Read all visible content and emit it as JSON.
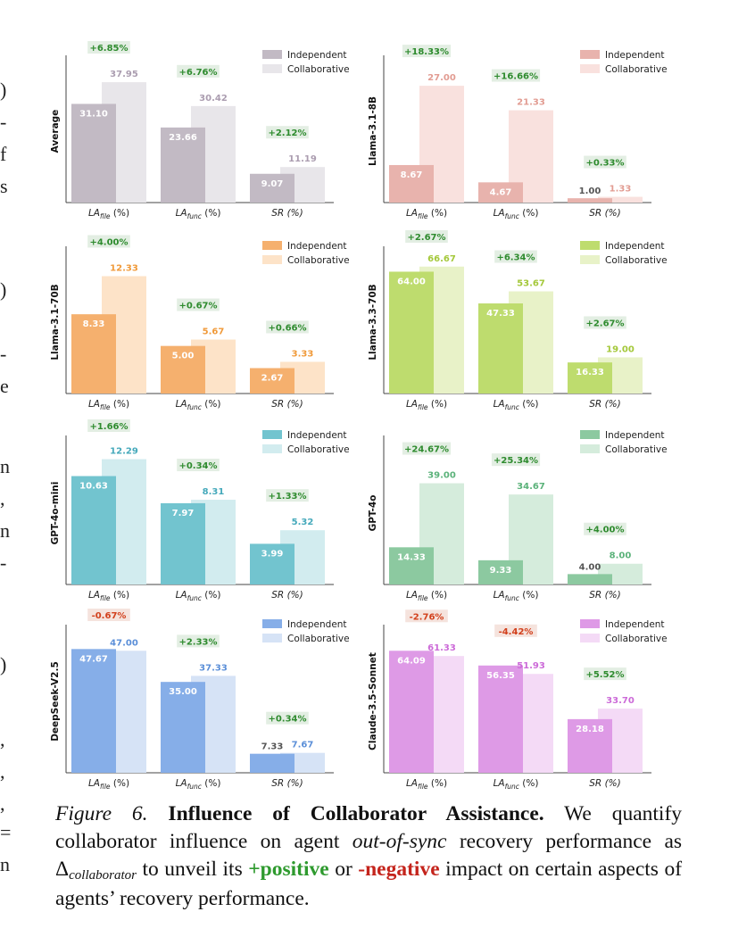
{
  "edge_glyphs": [
    ")",
    "-",
    "f",
    "s",
    ")",
    "-",
    "e",
    "n",
    ",",
    "n",
    "-",
    ")",
    ",",
    ",",
    ",",
    "=",
    "n"
  ],
  "chart_data": [
    {
      "type": "bar",
      "model": "Average",
      "categories": [
        "LA_file (%)",
        "LA_func (%)",
        "SR (%)"
      ],
      "series": [
        {
          "name": "Independent",
          "values": [
            31.1,
            23.66,
            9.07
          ]
        },
        {
          "name": "Collaborative",
          "values": [
            37.95,
            30.42,
            11.19
          ]
        }
      ],
      "value_labels": {
        "independent": [
          "31.10",
          "23.66",
          "9.07"
        ],
        "collaborative": [
          "37.95",
          "30.42",
          "11.19"
        ]
      },
      "deltas": [
        "+6.85%",
        "+6.76%",
        "+2.12%"
      ],
      "colors": {
        "independent": "#c2bac4",
        "collaborative": "#e8e6ea",
        "label": "#ab9db0"
      },
      "ylim": [
        0,
        45
      ]
    },
    {
      "type": "bar",
      "model": "Llama-3.1-8B",
      "categories": [
        "LA_file (%)",
        "LA_func (%)",
        "SR (%)"
      ],
      "series": [
        {
          "name": "Independent",
          "values": [
            8.67,
            4.67,
            1.0
          ]
        },
        {
          "name": "Collaborative",
          "values": [
            27.0,
            21.33,
            1.33
          ]
        }
      ],
      "value_labels": {
        "independent": [
          "8.67",
          "4.67",
          "1.00"
        ],
        "collaborative": [
          "27.00",
          "21.33",
          "1.33"
        ]
      },
      "deltas": [
        "+18.33%",
        "+16.66%",
        "+0.33%"
      ],
      "colors": {
        "independent": "#e8b3ad",
        "collaborative": "#f9e1de",
        "label": "#e29c92"
      },
      "ylim": [
        0,
        33
      ]
    },
    {
      "type": "bar",
      "model": "Llama-3.1-70B",
      "categories": [
        "LA_file (%)",
        "LA_func (%)",
        "SR (%)"
      ],
      "series": [
        {
          "name": "Independent",
          "values": [
            8.33,
            5.0,
            2.67
          ]
        },
        {
          "name": "Collaborative",
          "values": [
            12.33,
            5.67,
            3.33
          ]
        }
      ],
      "value_labels": {
        "independent": [
          "8.33",
          "5.00",
          "2.67"
        ],
        "collaborative": [
          "12.33",
          "5.67",
          "3.33"
        ]
      },
      "deltas": [
        "+4.00%",
        "+0.67%",
        "+0.66%"
      ],
      "colors": {
        "independent": "#f5b06e",
        "collaborative": "#fde3c8",
        "label": "#f09a3a"
      },
      "ylim": [
        0,
        15
      ]
    },
    {
      "type": "bar",
      "model": "Llama-3.3-70B",
      "categories": [
        "LA_file (%)",
        "LA_func (%)",
        "SR (%)"
      ],
      "series": [
        {
          "name": "Independent",
          "values": [
            64.0,
            47.33,
            16.33
          ]
        },
        {
          "name": "Collaborative",
          "values": [
            66.67,
            53.67,
            19.0
          ]
        }
      ],
      "value_labels": {
        "independent": [
          "64.00",
          "47.33",
          "16.33"
        ],
        "collaborative": [
          "66.67",
          "53.67",
          "19.00"
        ]
      },
      "deltas": [
        "+2.67%",
        "+6.34%",
        "+2.67%"
      ],
      "colors": {
        "independent": "#bedc6e",
        "collaborative": "#e8f2c8",
        "label": "#a4c83a"
      },
      "ylim": [
        0,
        75
      ]
    },
    {
      "type": "bar",
      "model": "GPT-4o-mini",
      "categories": [
        "LA_file (%)",
        "LA_func (%)",
        "SR (%)"
      ],
      "series": [
        {
          "name": "Independent",
          "values": [
            10.63,
            7.97,
            3.99
          ]
        },
        {
          "name": "Collaborative",
          "values": [
            12.29,
            8.31,
            5.32
          ]
        }
      ],
      "value_labels": {
        "independent": [
          "10.63",
          "7.97",
          "3.99"
        ],
        "collaborative": [
          "12.29",
          "8.31",
          "5.32"
        ]
      },
      "deltas": [
        "+1.66%",
        "+0.34%",
        "+1.33%"
      ],
      "colors": {
        "independent": "#72c4cf",
        "collaborative": "#d2ecef",
        "label": "#45a9bb"
      },
      "ylim": [
        0,
        14
      ]
    },
    {
      "type": "bar",
      "model": "GPT-4o",
      "categories": [
        "LA_file (%)",
        "LA_func (%)",
        "SR (%)"
      ],
      "series": [
        {
          "name": "Independent",
          "values": [
            14.33,
            9.33,
            4.0
          ]
        },
        {
          "name": "Collaborative",
          "values": [
            39.0,
            34.67,
            8.0
          ]
        }
      ],
      "value_labels": {
        "independent": [
          "14.33",
          "9.33",
          "4.00"
        ],
        "collaborative": [
          "39.00",
          "34.67",
          "8.00"
        ]
      },
      "deltas": [
        "+24.67%",
        "+25.34%",
        "+4.00%"
      ],
      "colors": {
        "independent": "#8cc9a0",
        "collaborative": "#d5ecdc",
        "label": "#5bb27a"
      },
      "ylim": [
        0,
        55
      ]
    },
    {
      "type": "bar",
      "model": "DeepSeek-V2.5",
      "categories": [
        "LA_file (%)",
        "LA_func (%)",
        "SR (%)"
      ],
      "series": [
        {
          "name": "Independent",
          "values": [
            47.67,
            35.0,
            7.33
          ]
        },
        {
          "name": "Collaborative",
          "values": [
            47.0,
            37.33,
            7.67
          ]
        }
      ],
      "value_labels": {
        "independent": [
          "47.67",
          "35.00",
          "7.33"
        ],
        "collaborative": [
          "47.00",
          "37.33",
          "7.67"
        ]
      },
      "deltas": [
        "-0.67%",
        "+2.33%",
        "+0.34%"
      ],
      "colors": {
        "independent": "#86aee8",
        "collaborative": "#d6e3f6",
        "label": "#5b8fd8"
      },
      "ylim": [
        0,
        55
      ]
    },
    {
      "type": "bar",
      "model": "Claude-3.5-Sonnet",
      "categories": [
        "LA_file (%)",
        "LA_func (%)",
        "SR (%)"
      ],
      "series": [
        {
          "name": "Independent",
          "values": [
            64.09,
            56.35,
            28.18
          ]
        },
        {
          "name": "Collaborative",
          "values": [
            61.33,
            51.93,
            33.7
          ]
        }
      ],
      "value_labels": {
        "independent": [
          "64.09",
          "56.35",
          "28.18"
        ],
        "collaborative": [
          "61.33",
          "51.93",
          "33.70"
        ]
      },
      "deltas": [
        "-2.76%",
        "-4.42%",
        "+5.52%"
      ],
      "colors": {
        "independent": "#de9ae6",
        "collaborative": "#f4daf6",
        "label": "#cc6ad8"
      },
      "ylim": [
        0,
        75
      ]
    }
  ],
  "legend": {
    "independent": "Independent",
    "collaborative": "Collaborative"
  },
  "axis": {
    "la": "LA",
    "sub_file": "file",
    "sub_func": "func",
    "unit": " (%)",
    "sr": "SR (%)"
  },
  "delta_colors": {
    "positive": "#2e8b2e",
    "positive_bg": "#e3eee3",
    "negative": "#d2401c",
    "negative_bg": "#f5e3dd"
  },
  "caption": {
    "figure": "Figure 6.",
    "title": "Influence of Collaborator Assistance.",
    "text1": "We quantify collaborator influence on agent",
    "em1": "out-of-sync",
    "text2": "recovery performance as",
    "delta": "Δ",
    "delta_sub": "collaborator",
    "text3": "to unveil its",
    "positive": "+positive",
    "text4": "or",
    "negative": "-negative",
    "text5": "impact on certain aspects of agents’ recovery performance."
  }
}
